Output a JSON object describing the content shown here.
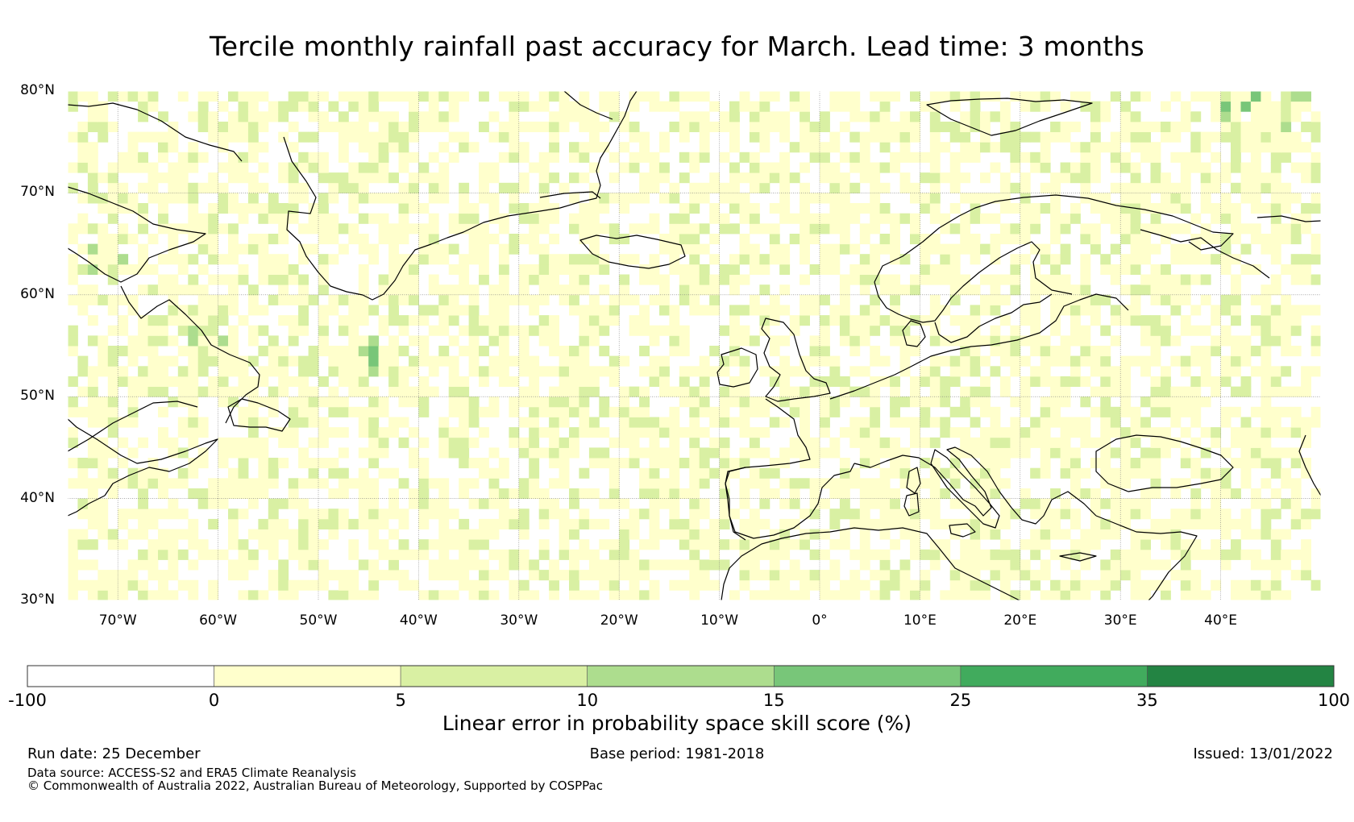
{
  "title": "Tercile monthly rainfall past accuracy for March. Lead time: 3 months",
  "map": {
    "lat_range": [
      30,
      80
    ],
    "lon_range": [
      -75,
      50
    ],
    "lat_labels": [
      "80°N",
      "70°N",
      "60°N",
      "50°N",
      "40°N",
      "30°N"
    ],
    "lon_labels": [
      "70°W",
      "60°W",
      "50°W",
      "40°W",
      "30°W",
      "20°W",
      "10°W",
      "0°",
      "10°E",
      "20°E",
      "30°E",
      "40°E"
    ],
    "region_labels": [],
    "coast_icon": "coastline-outline",
    "colors": {
      "skill_0_5": "#ffffcc",
      "skill_5_10": "#d9f0a3",
      "skill_10_15": "#addd8e",
      "skill_15_25": "#78c679",
      "skill_25_35": "#41ab5d",
      "skill_35_100": "#238443"
    }
  },
  "colorbar": {
    "label": "Linear error in probability space skill score (%)",
    "ticks": [
      "-100",
      "0",
      "5",
      "10",
      "15",
      "25",
      "35",
      "100"
    ],
    "colors": [
      "#ffffff",
      "#ffffcc",
      "#d9f0a3",
      "#addd8e",
      "#78c679",
      "#41ab5d",
      "#238443"
    ]
  },
  "footer": {
    "run_date": "Run date: 25 December",
    "base_period": "Base period: 1981-2018",
    "issued": "Issued: 13/01/2022",
    "data_source": "Data source: ACCESS-S2 and ERA5 Climate Reanalysis",
    "copyright": "© Commonwealth of Australia 2022, Australian Bureau of Meteorology, Supported by COSPPac"
  }
}
